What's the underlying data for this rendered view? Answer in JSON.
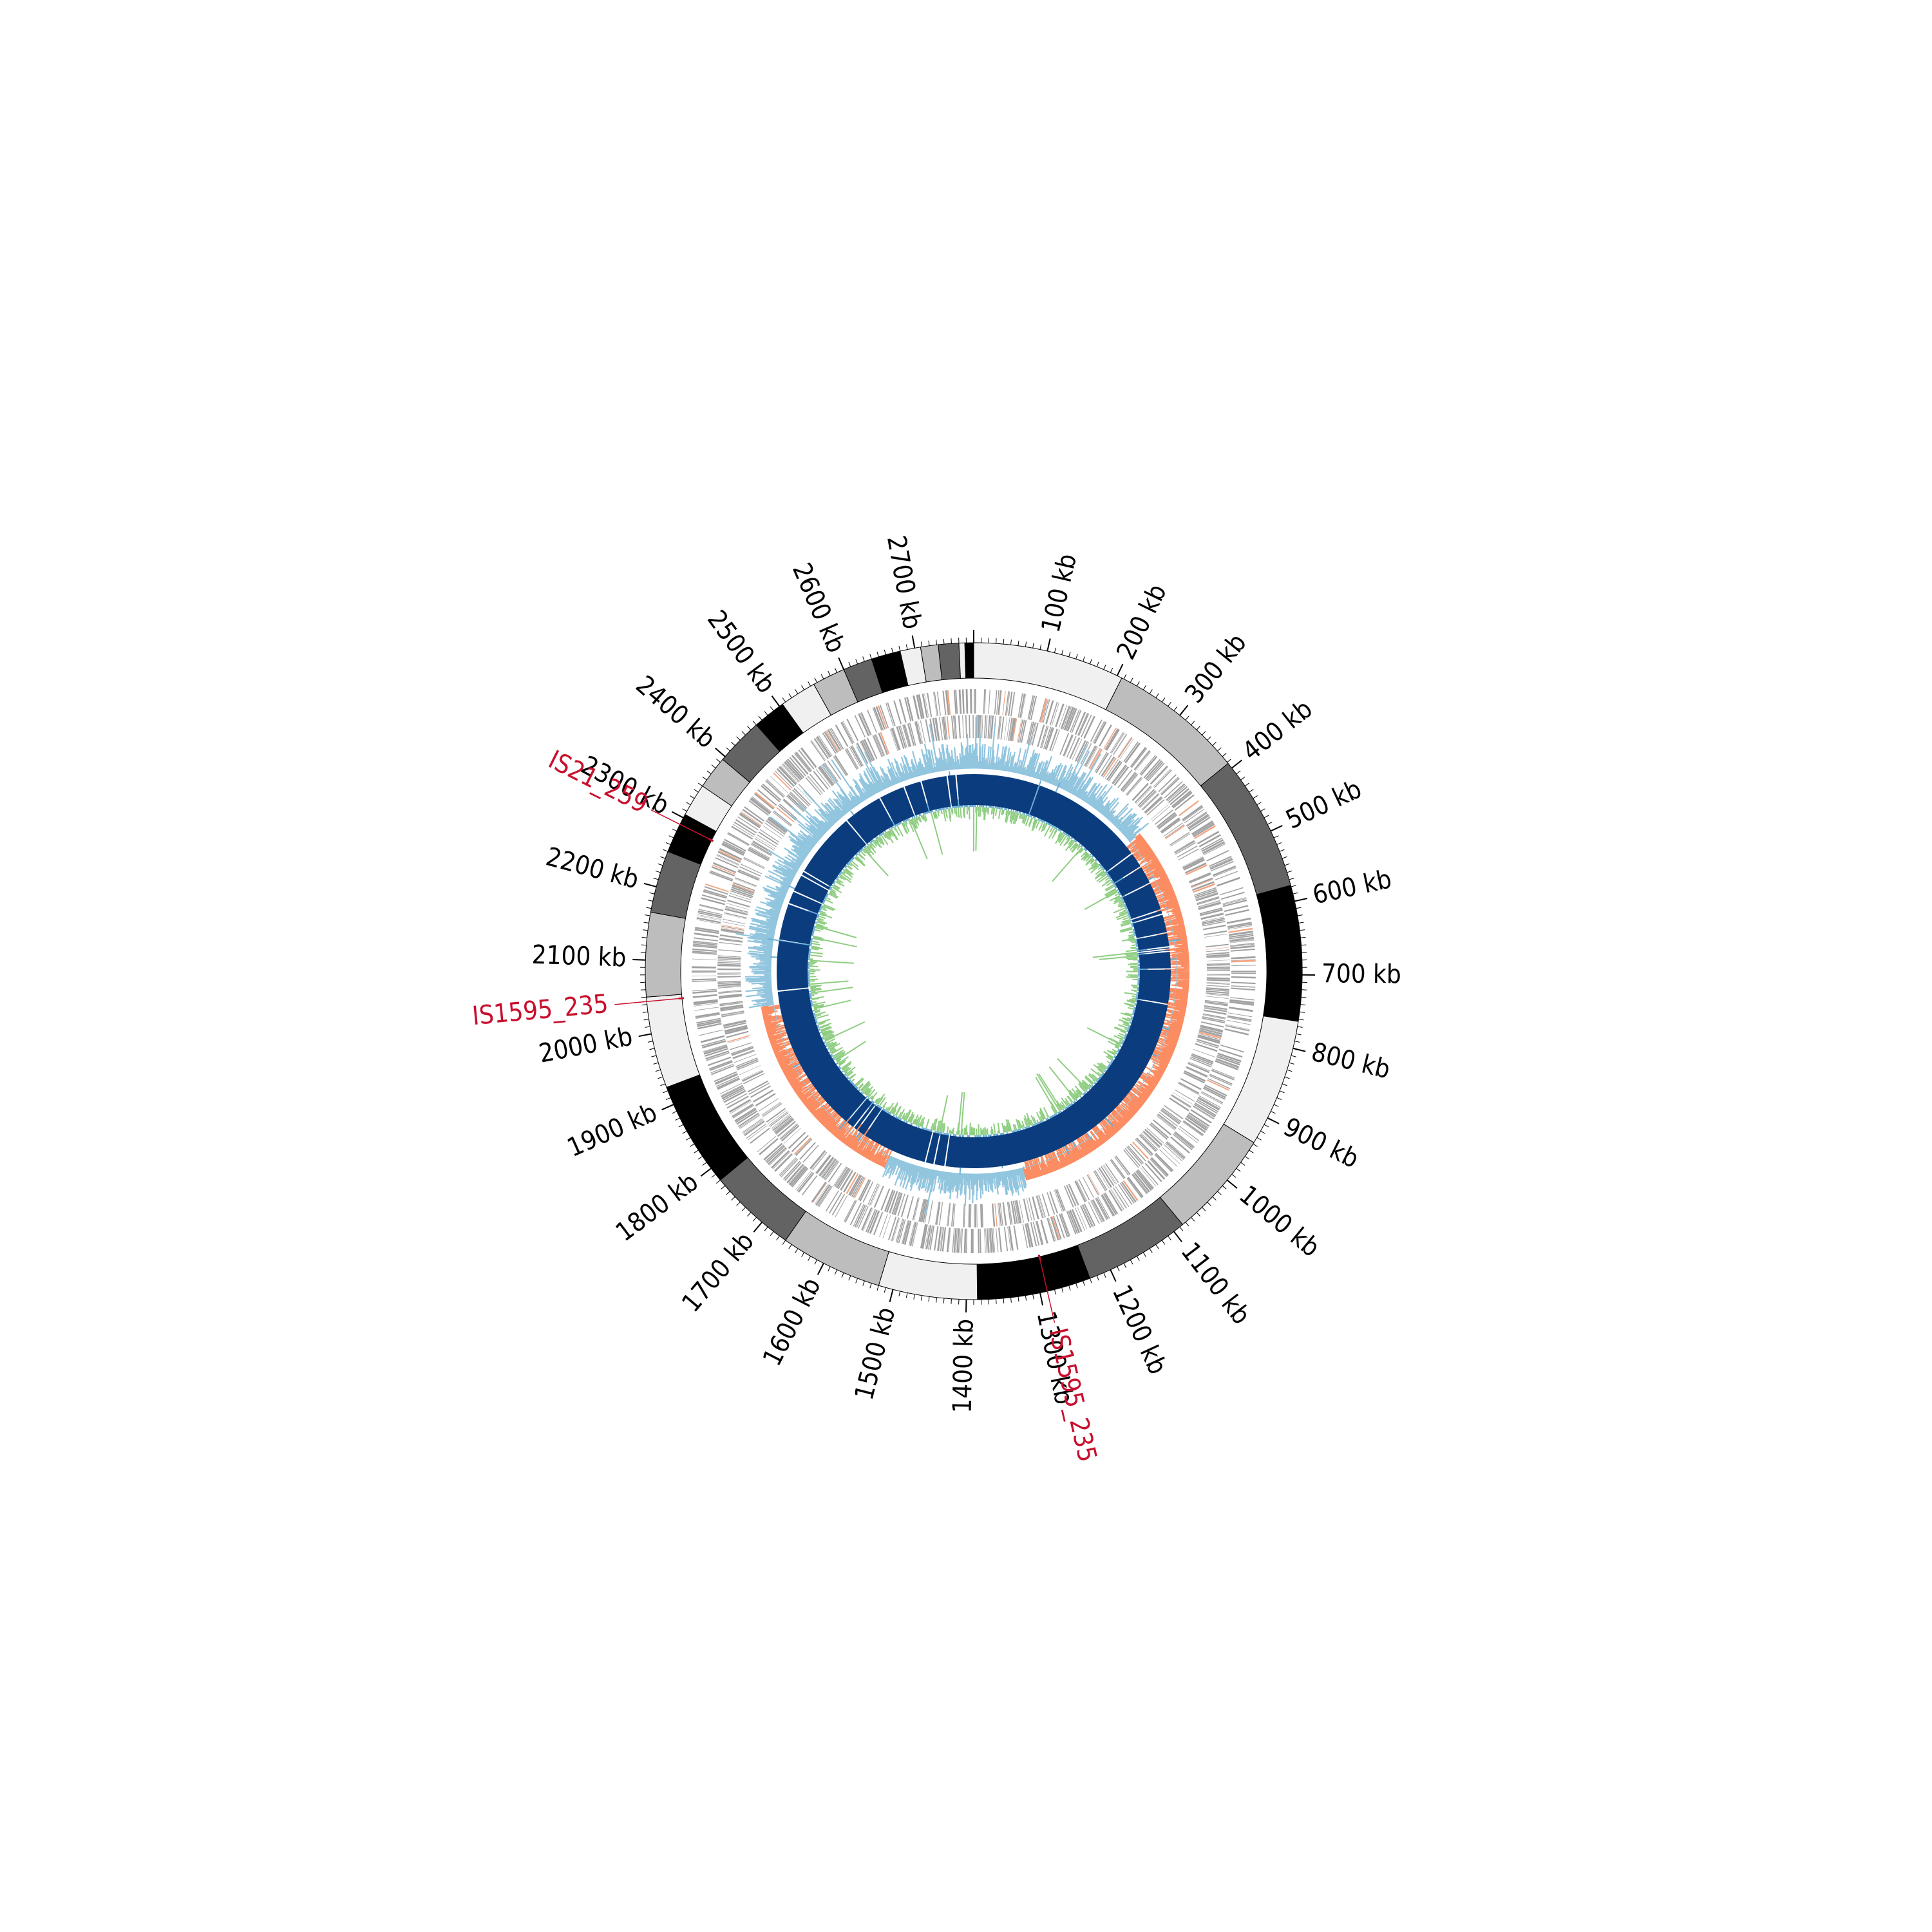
{
  "genome_map": {
    "genome_length_kb": 2780,
    "scale_labels": [
      "100 kb",
      "200 kb",
      "300 kb",
      "400 kb",
      "500 kb",
      "600 kb",
      "700 kb",
      "800 kb",
      "900 kb",
      "1000 kb",
      "1100 kb",
      "1200 kb",
      "1300 kb",
      "1400 kb",
      "1500 kb",
      "1600 kb",
      "1700 kb",
      "1800 kb",
      "1900 kb",
      "2000 kb",
      "2100 kb",
      "2200 kb",
      "2300 kb",
      "2400 kb",
      "2500 kb",
      "2600 kb",
      "2700 kb"
    ],
    "scale_positions_kb": [
      100,
      200,
      300,
      400,
      500,
      600,
      700,
      800,
      900,
      1000,
      1100,
      1200,
      1300,
      1400,
      1500,
      1600,
      1700,
      1800,
      1900,
      2000,
      2100,
      2200,
      2300,
      2400,
      2500,
      2600,
      2700
    ],
    "contig_segments": [
      {
        "start": 0,
        "end": 207,
        "color": "#f0f0f0"
      },
      {
        "start": 207,
        "end": 392,
        "color": "#bdbdbd"
      },
      {
        "start": 392,
        "end": 578,
        "color": "#636363"
      },
      {
        "start": 578,
        "end": 763,
        "color": "#000000"
      },
      {
        "start": 763,
        "end": 938,
        "color": "#f0f0f0"
      },
      {
        "start": 938,
        "end": 1085,
        "color": "#bdbdbd"
      },
      {
        "start": 1085,
        "end": 1230,
        "color": "#636363"
      },
      {
        "start": 1230,
        "end": 1385,
        "color": "#000000"
      },
      {
        "start": 1385,
        "end": 1520,
        "color": "#f0f0f0"
      },
      {
        "start": 1520,
        "end": 1660,
        "color": "#bdbdbd"
      },
      {
        "start": 1660,
        "end": 1780,
        "color": "#636363"
      },
      {
        "start": 1780,
        "end": 1925,
        "color": "#000000"
      },
      {
        "start": 1925,
        "end": 2050,
        "color": "#f0f0f0"
      },
      {
        "start": 2050,
        "end": 2165,
        "color": "#bdbdbd"
      },
      {
        "start": 2165,
        "end": 2250,
        "color": "#636363"
      },
      {
        "start": 2250,
        "end": 2305,
        "color": "#000000"
      },
      {
        "start": 2305,
        "end": 2350,
        "color": "#f0f0f0"
      },
      {
        "start": 2350,
        "end": 2395,
        "color": "#bdbdbd"
      },
      {
        "start": 2395,
        "end": 2460,
        "color": "#636363"
      },
      {
        "start": 2460,
        "end": 2505,
        "color": "#000000"
      },
      {
        "start": 2505,
        "end": 2555,
        "color": "#f0f0f0"
      },
      {
        "start": 2555,
        "end": 2600,
        "color": "#bdbdbd"
      },
      {
        "start": 2600,
        "end": 2640,
        "color": "#636363"
      },
      {
        "start": 2640,
        "end": 2680,
        "color": "#000000"
      },
      {
        "start": 2680,
        "end": 2708,
        "color": "#f0f0f0"
      },
      {
        "start": 2708,
        "end": 2732,
        "color": "#bdbdbd"
      },
      {
        "start": 2732,
        "end": 2760,
        "color": "#636363"
      },
      {
        "start": 2760,
        "end": 2768,
        "color": "#f0f0f0"
      },
      {
        "start": 2768,
        "end": 2780,
        "color": "#000000"
      }
    ],
    "is_elements": [
      {
        "name": "IS21_259",
        "position_kb": 2290
      },
      {
        "name": "IS1595_235",
        "position_kb": 2044
      },
      {
        "name": "IS1595_235",
        "position_kb": 1290
      }
    ],
    "gc_skew_negative_regions": [
      [
        390,
        1280
      ],
      [
        1580,
        2010
      ]
    ],
    "blast_gaps_kb": [
      150,
      412,
      448,
      490,
      555,
      565,
      608,
      640,
      645,
      650,
      690,
      770,
      1455,
      1480,
      1500,
      1650,
      1670,
      1680,
      1700,
      2040,
      2155,
      2240,
      2270,
      2310,
      2320,
      2470,
      2560,
      2620,
      2660,
      2720,
      2740
    ]
  },
  "colors": {
    "scale_text": "#000000",
    "is_label": "#c8102e",
    "gene_track": "#a0a0a0",
    "gene_highlight": "#f4a582",
    "gc_skew_positive": "#92c5de",
    "gc_skew_negative": "#fc8d62",
    "gc_content": "#8fce82",
    "gc_content_line": "#6baed6",
    "blast_ring": "#0b3d7e"
  }
}
